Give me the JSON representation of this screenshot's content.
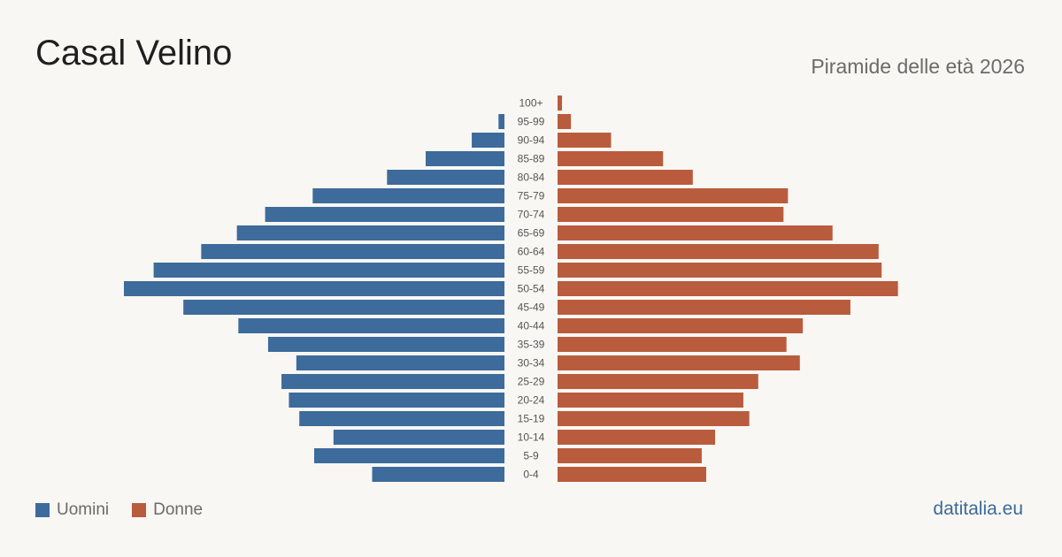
{
  "title": "Casal Velino",
  "subtitle": "Piramide delle età 2026",
  "legend": {
    "men": "Uomini",
    "women": "Donne"
  },
  "source": "datitalia.eu",
  "colors": {
    "men": "#3d6b9b",
    "women": "#b95c3d",
    "background": "#f9f7f3"
  },
  "chart_data": {
    "type": "bar",
    "orientation": "horizontal-pyramid",
    "categories": [
      "100+",
      "95-99",
      "90-94",
      "85-89",
      "80-84",
      "75-79",
      "70-74",
      "65-69",
      "60-64",
      "55-59",
      "50-54",
      "45-49",
      "40-44",
      "35-39",
      "30-34",
      "25-29",
      "20-24",
      "15-19",
      "10-14",
      "5-9",
      "0-4"
    ],
    "series": [
      {
        "name": "Uomini",
        "color": "#3d6b9b",
        "values": [
          0,
          4,
          22,
          53,
          79,
          129,
          161,
          180,
          204,
          236,
          256,
          216,
          179,
          159,
          140,
          150,
          145,
          138,
          115,
          128,
          89
        ]
      },
      {
        "name": "Donne",
        "color": "#b95c3d",
        "values": [
          3,
          9,
          36,
          71,
          91,
          155,
          152,
          185,
          216,
          218,
          229,
          197,
          165,
          154,
          163,
          135,
          125,
          129,
          106,
          97,
          100
        ]
      }
    ],
    "grid": false,
    "legend_position": "bottom-left"
  }
}
